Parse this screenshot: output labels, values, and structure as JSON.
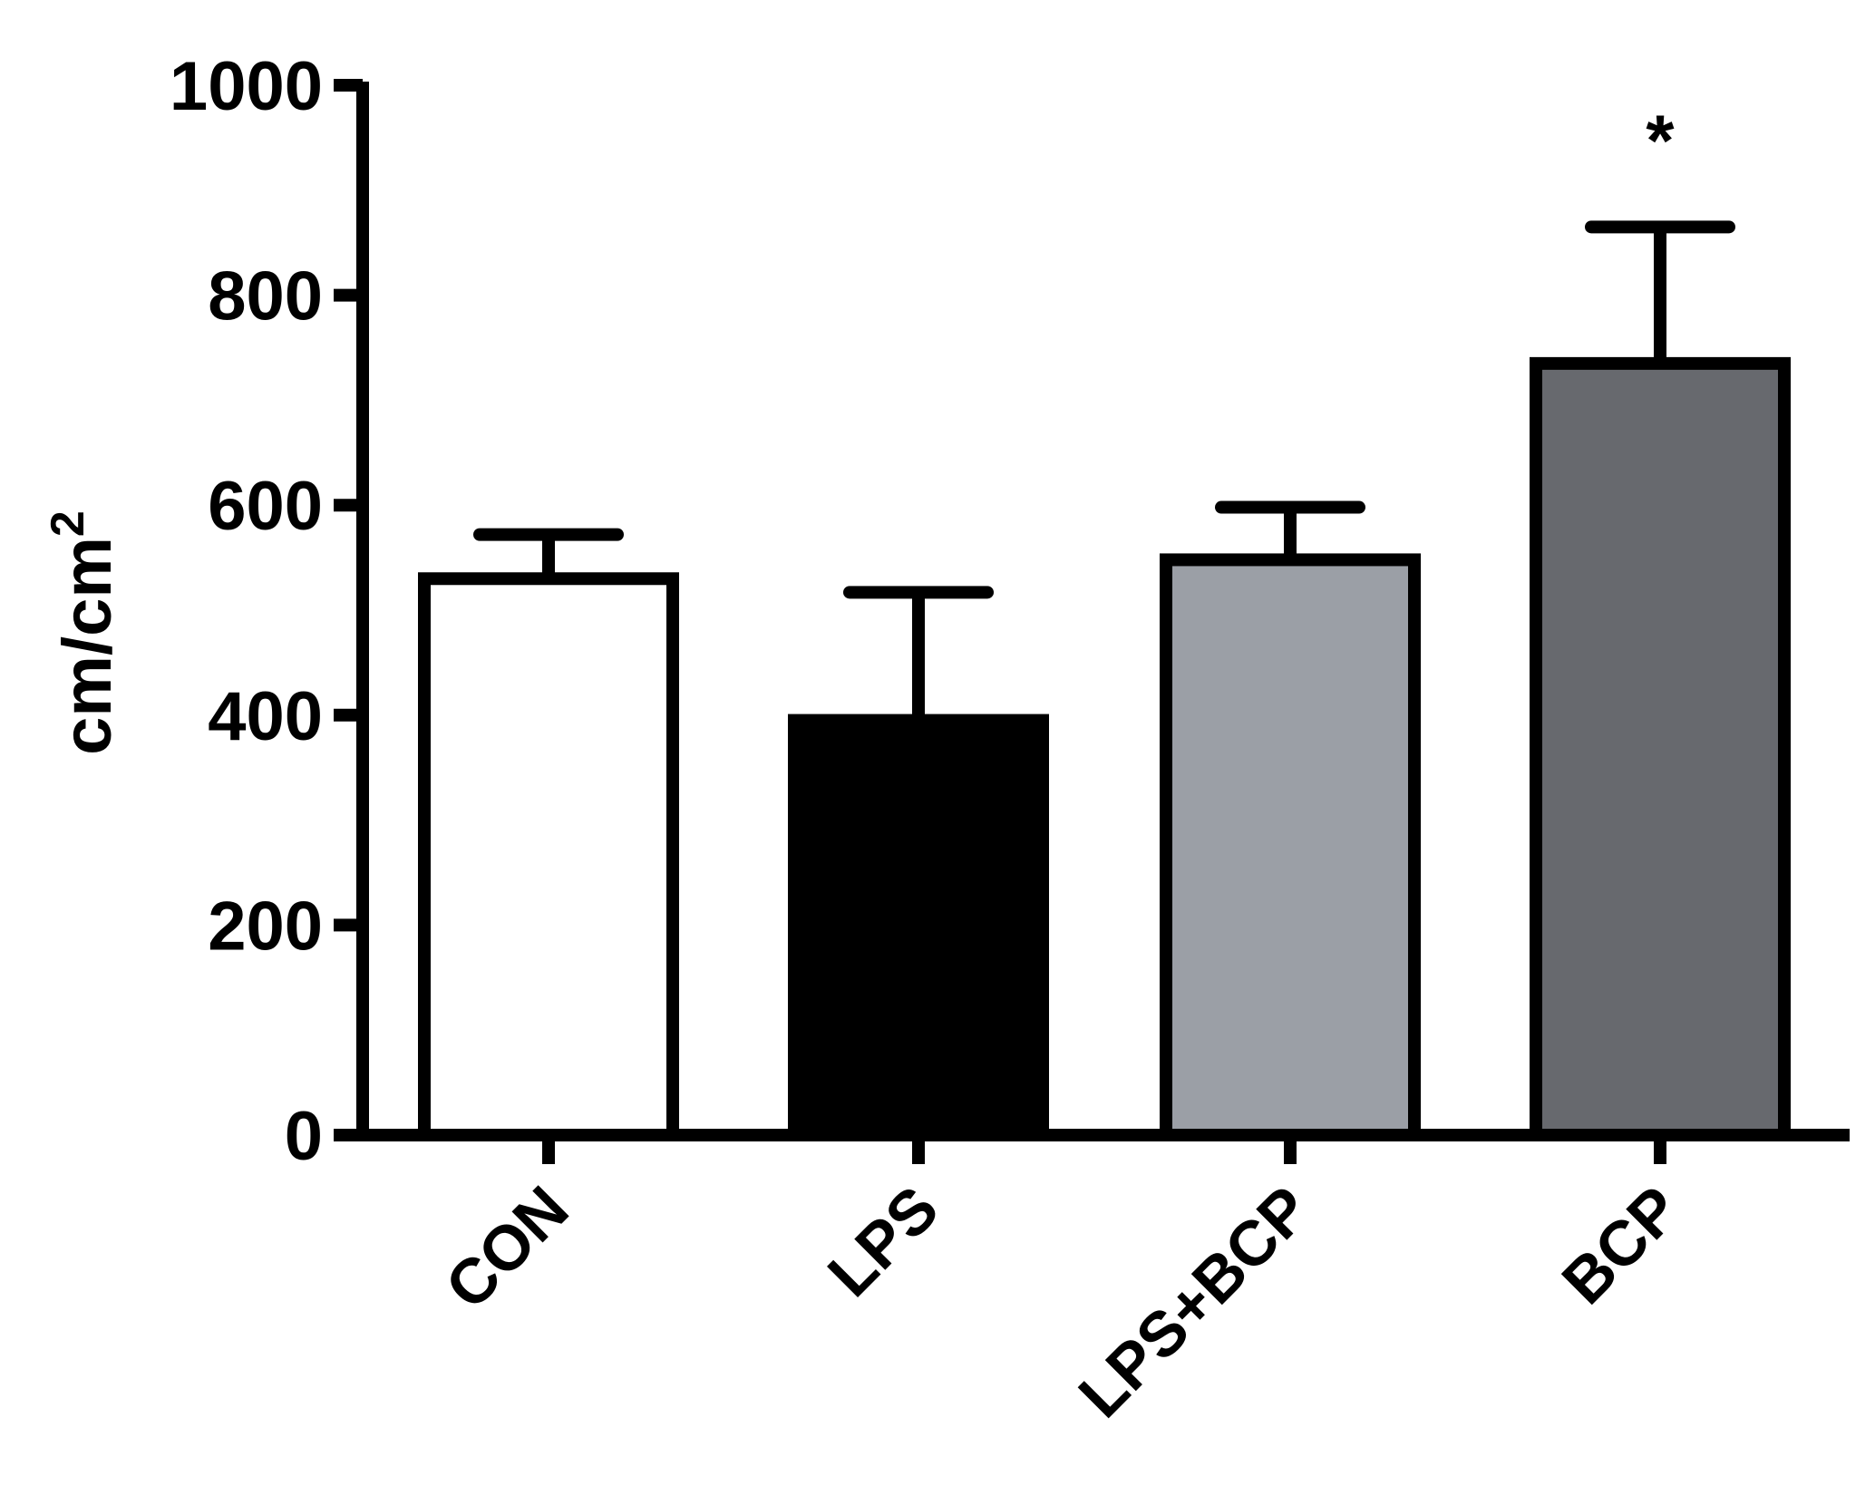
{
  "chart_data": {
    "type": "bar",
    "title": "",
    "xlabel": "",
    "ylabel": "cm/cm",
    "ylabel_superscript": "2",
    "ylim": [
      0,
      1000
    ],
    "yticks": [
      "0",
      "200",
      "400",
      "600",
      "800",
      "1000"
    ],
    "categories": [
      "CON",
      "LPS",
      "LPS+BCP",
      "BCP"
    ],
    "values": [
      530,
      395,
      548,
      735
    ],
    "errors": [
      42,
      122,
      50,
      130
    ],
    "bar_colors": [
      "#ffffff",
      "#000000",
      "#9b9fa6",
      "#67696e"
    ],
    "annotations": [
      {
        "category": "BCP",
        "text": "*"
      }
    ],
    "grid": false,
    "legend": "none"
  }
}
